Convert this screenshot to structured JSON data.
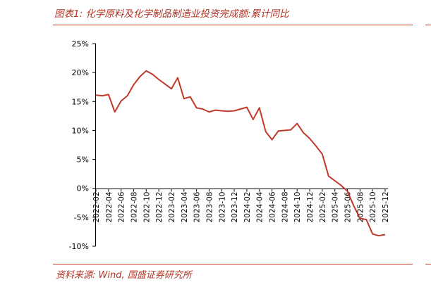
{
  "figure": {
    "title": "图表1:  化学原料及化学制品制造业投资完成额:累计同比",
    "source": "资料来源:  Wind,  国盛证券研究所"
  },
  "colors": {
    "accent": "#c0392b",
    "line": "#c0392b",
    "axis": "#000000"
  },
  "chart_data": {
    "type": "line",
    "title": "",
    "xlabel": "",
    "ylabel": "",
    "ylim": [
      -10,
      25
    ],
    "yticks": [
      "25%",
      "20%",
      "15%",
      "10%",
      "5%",
      "0%",
      "-5%",
      "-10%"
    ],
    "ytick_values": [
      25,
      20,
      15,
      10,
      5,
      0,
      -5,
      -10
    ],
    "xtick_labels": [
      "2022-02",
      "2022-04",
      "2022-06",
      "2022-08",
      "2022-10",
      "2022-12",
      "2023-02",
      "2023-04",
      "2023-06",
      "2023-08",
      "2023-10",
      "2023-12",
      "2024-02",
      "2024-04",
      "2024-06",
      "2024-08",
      "2024-10",
      "2024-12",
      "2025-02",
      "2025-04",
      "2025-06",
      "2025-08",
      "2025-10",
      "2025-12"
    ],
    "grid": false,
    "legend": "none",
    "series": [
      {
        "x": [
          "2022-02",
          "2022-03",
          "2022-04",
          "2022-05",
          "2022-06",
          "2022-07",
          "2022-08",
          "2022-09",
          "2022-10",
          "2022-11",
          "2022-12",
          "2023-01",
          "2023-02",
          "2023-03",
          "2023-04",
          "2023-05",
          "2023-06",
          "2023-07",
          "2023-08",
          "2023-09",
          "2023-10",
          "2023-11",
          "2023-12",
          "2024-01",
          "2024-02",
          "2024-03",
          "2024-04",
          "2024-05",
          "2024-06",
          "2024-07",
          "2024-08",
          "2024-09",
          "2024-10",
          "2024-11",
          "2024-12",
          "2025-01",
          "2025-02",
          "2025-03",
          "2025-04",
          "2025-05",
          "2025-06",
          "2025-07",
          "2025-08",
          "2025-09",
          "2025-10",
          "2025-11",
          "2025-12"
        ],
        "values": [
          16.1,
          16.0,
          16.2,
          13.2,
          15.1,
          16.0,
          17.9,
          19.3,
          20.3,
          19.7,
          18.8,
          18.0,
          17.2,
          19.1,
          15.5,
          15.8,
          13.9,
          13.7,
          13.2,
          13.5,
          13.4,
          13.3,
          13.4,
          13.7,
          14.0,
          11.9,
          13.9,
          9.8,
          8.4,
          9.9,
          10.0,
          10.1,
          11.2,
          9.6,
          8.6,
          7.3,
          5.9,
          2.1,
          1.3,
          0.5,
          -0.5,
          -3.0,
          -5.2,
          -5.4,
          -7.9,
          -8.2,
          -8.0
        ]
      }
    ]
  }
}
